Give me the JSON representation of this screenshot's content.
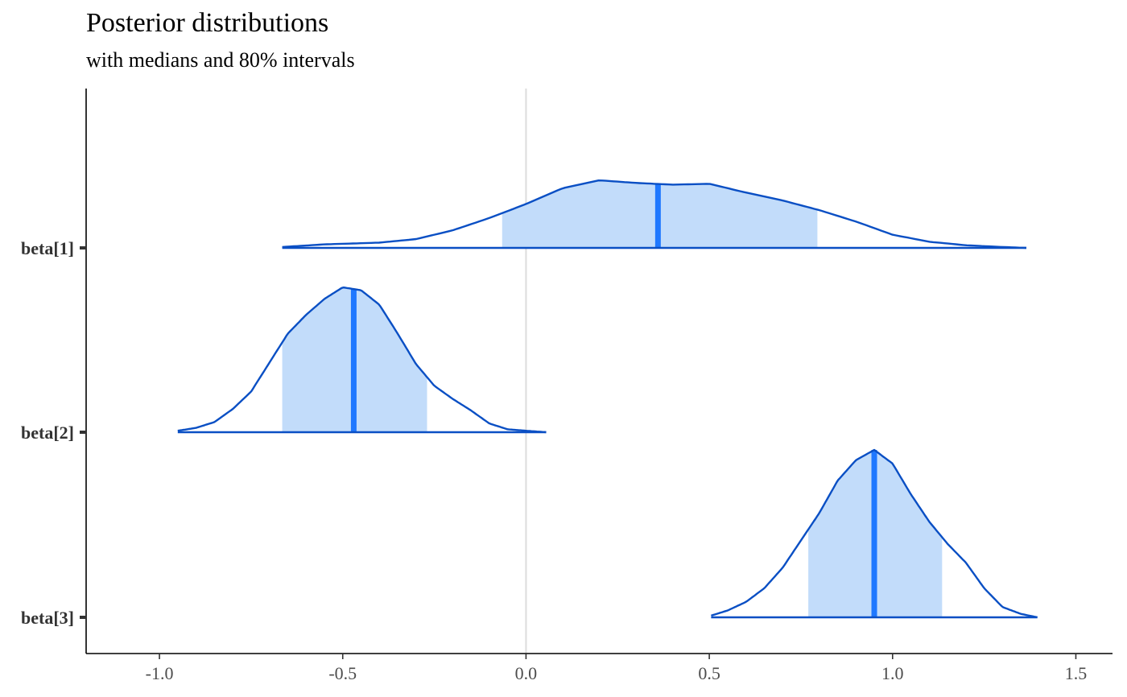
{
  "title": "Posterior distributions",
  "subtitle": "with medians and 80% intervals",
  "colors": {
    "outline": "#0a4fc4",
    "fill": "#c2dcfa",
    "median": "#1f78ff",
    "vline": "#dcdcdc",
    "axis": "#000000",
    "tick_text": "#4d4d4d"
  },
  "chart_data": {
    "type": "area",
    "subtype": "posterior-density-ridges",
    "xlim": [
      -1.2,
      1.6
    ],
    "x_ticks": [
      -1.0,
      -0.5,
      0.0,
      0.5,
      1.0,
      1.5
    ],
    "x_tick_labels": [
      "-1.0",
      "-0.5",
      "0.0",
      "0.5",
      "1.0",
      "1.5"
    ],
    "reference_line_x": 0.0,
    "grid": false,
    "series": [
      {
        "name": "beta[1]",
        "median": 0.36,
        "interval_80": [
          -0.065,
          0.795
        ],
        "range": [
          -0.665,
          1.365
        ],
        "density_x": [
          -0.665,
          -0.55,
          -0.4,
          -0.3,
          -0.2,
          -0.1,
          0.0,
          0.1,
          0.2,
          0.3,
          0.4,
          0.5,
          0.6,
          0.7,
          0.8,
          0.9,
          1.0,
          1.1,
          1.2,
          1.3,
          1.365
        ],
        "density_y": [
          0.01,
          0.04,
          0.06,
          0.1,
          0.2,
          0.34,
          0.5,
          0.68,
          0.77,
          0.74,
          0.72,
          0.73,
          0.63,
          0.54,
          0.43,
          0.3,
          0.15,
          0.07,
          0.03,
          0.01,
          0.0
        ]
      },
      {
        "name": "beta[2]",
        "median": -0.47,
        "interval_80": [
          -0.665,
          -0.27
        ],
        "range": [
          -0.95,
          0.055
        ],
        "density_x": [
          -0.95,
          -0.9,
          -0.85,
          -0.8,
          -0.75,
          -0.7,
          -0.65,
          -0.6,
          -0.55,
          -0.5,
          -0.45,
          -0.4,
          -0.35,
          -0.3,
          -0.25,
          -0.2,
          -0.15,
          -0.1,
          -0.05,
          0.0,
          0.055
        ],
        "density_y": [
          0.01,
          0.03,
          0.07,
          0.16,
          0.28,
          0.48,
          0.68,
          0.81,
          0.92,
          1.0,
          0.98,
          0.88,
          0.68,
          0.47,
          0.32,
          0.23,
          0.15,
          0.06,
          0.02,
          0.01,
          0.0
        ]
      },
      {
        "name": "beta[3]",
        "median": 0.95,
        "interval_80": [
          0.77,
          1.135
        ],
        "range": [
          0.505,
          1.395
        ],
        "density_x": [
          0.505,
          0.55,
          0.6,
          0.65,
          0.7,
          0.75,
          0.8,
          0.85,
          0.9,
          0.95,
          1.0,
          1.05,
          1.1,
          1.15,
          1.2,
          1.25,
          1.3,
          1.35,
          1.395
        ],
        "density_y": [
          0.01,
          0.04,
          0.09,
          0.17,
          0.29,
          0.45,
          0.61,
          0.8,
          0.92,
          0.98,
          0.9,
          0.72,
          0.56,
          0.43,
          0.32,
          0.17,
          0.06,
          0.02,
          0.0
        ]
      }
    ]
  }
}
